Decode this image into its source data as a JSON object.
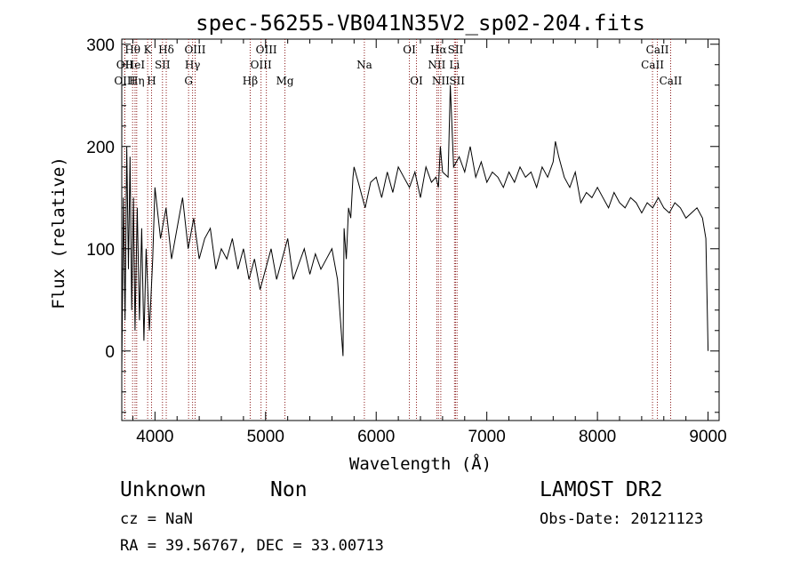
{
  "chart_data": {
    "type": "line",
    "title": "spec-56255-VB041N35V2_sp02-204.fits",
    "xlabel": "Wavelength (Å)",
    "ylabel": "Flux (relative)",
    "xlim": [
      3700,
      9100
    ],
    "ylim": [
      -68,
      305
    ],
    "xticks": [
      4000,
      5000,
      6000,
      7000,
      8000,
      9000
    ],
    "yticks": [
      0,
      100,
      200,
      300
    ],
    "grid": false,
    "series": [
      {
        "x": [
          3700,
          3715,
          3730,
          3745,
          3760,
          3775,
          3790,
          3805,
          3820,
          3840,
          3860,
          3880,
          3900,
          3920,
          3950,
          3980,
          4000,
          4050,
          4100,
          4150,
          4200,
          4250,
          4300,
          4350,
          4400,
          4450,
          4500,
          4550,
          4600,
          4650,
          4700,
          4750,
          4800,
          4850,
          4900,
          4950,
          5000,
          5050,
          5100,
          5150,
          5200,
          5250,
          5300,
          5350,
          5400,
          5450,
          5500,
          5550,
          5600,
          5650,
          5700,
          5710,
          5730,
          5750,
          5770,
          5790,
          5800,
          5850,
          5900,
          5950,
          6000,
          6050,
          6100,
          6150,
          6200,
          6250,
          6300,
          6350,
          6400,
          6450,
          6500,
          6540,
          6562,
          6580,
          6600,
          6650,
          6670,
          6700,
          6750,
          6800,
          6850,
          6900,
          6950,
          7000,
          7050,
          7100,
          7150,
          7200,
          7250,
          7300,
          7350,
          7400,
          7450,
          7500,
          7550,
          7600,
          7620,
          7650,
          7700,
          7750,
          7800,
          7850,
          7900,
          7950,
          8000,
          8050,
          8100,
          8150,
          8200,
          8250,
          8300,
          8350,
          8400,
          8450,
          8500,
          8550,
          8600,
          8650,
          8700,
          8750,
          8800,
          8850,
          8900,
          8950,
          8980,
          9000
        ],
        "y": [
          -20,
          150,
          30,
          200,
          80,
          190,
          40,
          150,
          20,
          140,
          30,
          120,
          10,
          100,
          20,
          90,
          160,
          110,
          140,
          90,
          120,
          150,
          100,
          130,
          90,
          110,
          120,
          80,
          100,
          90,
          110,
          80,
          100,
          70,
          90,
          60,
          80,
          100,
          70,
          90,
          110,
          70,
          85,
          100,
          75,
          95,
          80,
          90,
          100,
          70,
          -5,
          120,
          90,
          140,
          130,
          170,
          180,
          160,
          140,
          165,
          170,
          150,
          175,
          155,
          180,
          170,
          160,
          175,
          150,
          180,
          165,
          170,
          160,
          200,
          175,
          170,
          260,
          180,
          190,
          175,
          200,
          170,
          185,
          165,
          175,
          170,
          160,
          175,
          165,
          180,
          170,
          175,
          160,
          180,
          170,
          185,
          205,
          190,
          170,
          160,
          175,
          145,
          155,
          150,
          160,
          150,
          140,
          155,
          145,
          140,
          150,
          145,
          135,
          145,
          140,
          150,
          140,
          135,
          145,
          140,
          130,
          135,
          140,
          130,
          110,
          0
        ]
      }
    ],
    "lines": [
      {
        "label": "Hθ",
        "x": 3798,
        "row": 1
      },
      {
        "label": "OII",
        "x": 3727,
        "row": 2
      },
      {
        "label": "OIII",
        "x": 3727,
        "row": 3
      },
      {
        "label": "HeI",
        "x": 3820,
        "row": 2
      },
      {
        "label": "Hη",
        "x": 3835,
        "row": 3
      },
      {
        "label": "K",
        "x": 3934,
        "row": 1
      },
      {
        "label": "SII",
        "x": 4068,
        "row": 2
      },
      {
        "label": "H",
        "x": 3969,
        "row": 3
      },
      {
        "label": "Hδ",
        "x": 4102,
        "row": 1
      },
      {
        "label": "OIII",
        "x": 4363,
        "row": 1
      },
      {
        "label": "Hγ",
        "x": 4340,
        "row": 2
      },
      {
        "label": "G",
        "x": 4304,
        "row": 3
      },
      {
        "label": "Hβ",
        "x": 4861,
        "row": 3
      },
      {
        "label": "OIII",
        "x": 5007,
        "row": 1
      },
      {
        "label": "OIII",
        "x": 4959,
        "row": 2
      },
      {
        "label": "Mg",
        "x": 5175,
        "row": 3
      },
      {
        "label": "Na",
        "x": 5893,
        "row": 2
      },
      {
        "label": "OI",
        "x": 6300,
        "row": 1
      },
      {
        "label": "OI",
        "x": 6364,
        "row": 3
      },
      {
        "label": "Hα",
        "x": 6563,
        "row": 1
      },
      {
        "label": "NII",
        "x": 6548,
        "row": 2
      },
      {
        "label": "NII",
        "x": 6584,
        "row": 3
      },
      {
        "label": "SII",
        "x": 6717,
        "row": 1
      },
      {
        "label": "Li",
        "x": 6708,
        "row": 2
      },
      {
        "label": "SII",
        "x": 6731,
        "row": 3
      },
      {
        "label": "CaII",
        "x": 8542,
        "row": 1
      },
      {
        "label": "CaII",
        "x": 8498,
        "row": 2
      },
      {
        "label": "CaII",
        "x": 8662,
        "row": 3
      }
    ],
    "line_color": "#8b1a1a"
  },
  "info": {
    "class": "Unknown",
    "subclass": "Non",
    "survey": "LAMOST DR2",
    "cz": "cz = NaN",
    "obs_date": "Obs-Date: 20121123",
    "coords": "RA =  39.56767, DEC =  33.00713"
  }
}
